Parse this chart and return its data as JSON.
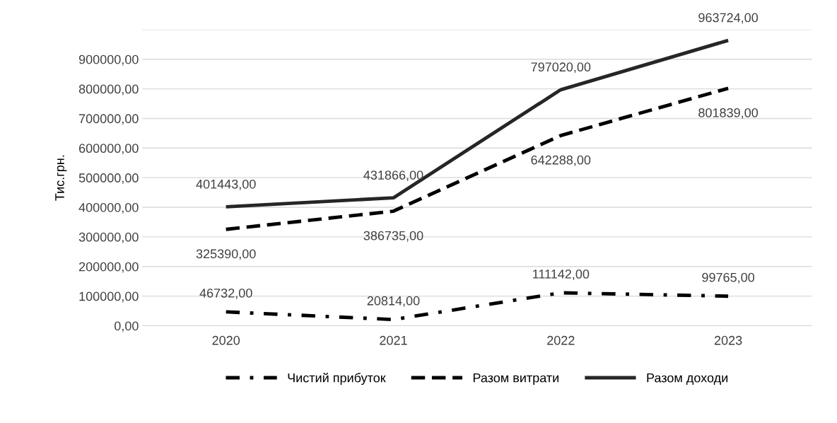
{
  "chart_data": {
    "type": "line",
    "ylabel": "Тис.грн.",
    "categories": [
      "2020",
      "2021",
      "2022",
      "2023"
    ],
    "series": [
      {
        "name": "Чистий прибуток",
        "color": "#000000",
        "line_style": "dashdot",
        "values": [
          46732,
          20814,
          111142,
          99765
        ],
        "value_labels": [
          "46732,00",
          "20814,00",
          "111142,00",
          "99765,00"
        ]
      },
      {
        "name": "Разом витрати",
        "color": "#000000",
        "line_style": "dashed",
        "values": [
          325390,
          386735,
          642288,
          801839
        ],
        "value_labels": [
          "325390,00",
          "386735,00",
          "642288,00",
          "801839,00"
        ]
      },
      {
        "name": "Разом доходи",
        "color": "#262626",
        "line_style": "solid",
        "values": [
          401443,
          431866,
          797020,
          963724
        ],
        "value_labels": [
          "401443,00",
          "431866,00",
          "797020,00",
          "963724,00"
        ]
      }
    ],
    "ylim": [
      0,
      1000000
    ],
    "yticks": [
      {
        "value": 0,
        "label": "0,00"
      },
      {
        "value": 100000,
        "label": "100000,00"
      },
      {
        "value": 200000,
        "label": "200000,00"
      },
      {
        "value": 300000,
        "label": "300000,00"
      },
      {
        "value": 400000,
        "label": "400000,00"
      },
      {
        "value": 500000,
        "label": "500000,00"
      },
      {
        "value": 600000,
        "label": "600000,00"
      },
      {
        "value": 700000,
        "label": "700000,00"
      },
      {
        "value": 800000,
        "label": "800000,00"
      },
      {
        "value": 900000,
        "label": "900000,00"
      },
      {
        "value": 1000000,
        "label": null
      }
    ],
    "grid": "y",
    "legend": "bottom",
    "marker": "none"
  }
}
